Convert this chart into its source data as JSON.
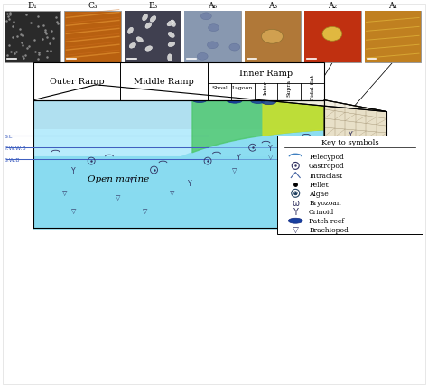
{
  "photo_labels": [
    "D₁",
    "C₃",
    "B₃",
    "A₆",
    "A₃",
    "A₂",
    "A₁"
  ],
  "zone_labels_top": [
    "Outer Ramp",
    "Middle Ramp",
    "Inner Ramp"
  ],
  "zone_labels_sub": [
    "Shoal",
    "Lagoon",
    "Inter",
    "Supra",
    "Tidal flat"
  ],
  "open_marine_label": "Open marine",
  "water_labels": [
    "S.L",
    "F.W.W.B",
    "S.W.B"
  ],
  "key_title": "Key to symbols",
  "key_symbols": [
    "Pelecypod",
    "Gastropod",
    "Intraclast",
    "Pellet",
    "Algae",
    "Bryozoan",
    "Crinoid",
    "Patch reef",
    "Brachiopod"
  ],
  "bg_color": "#ffffff"
}
